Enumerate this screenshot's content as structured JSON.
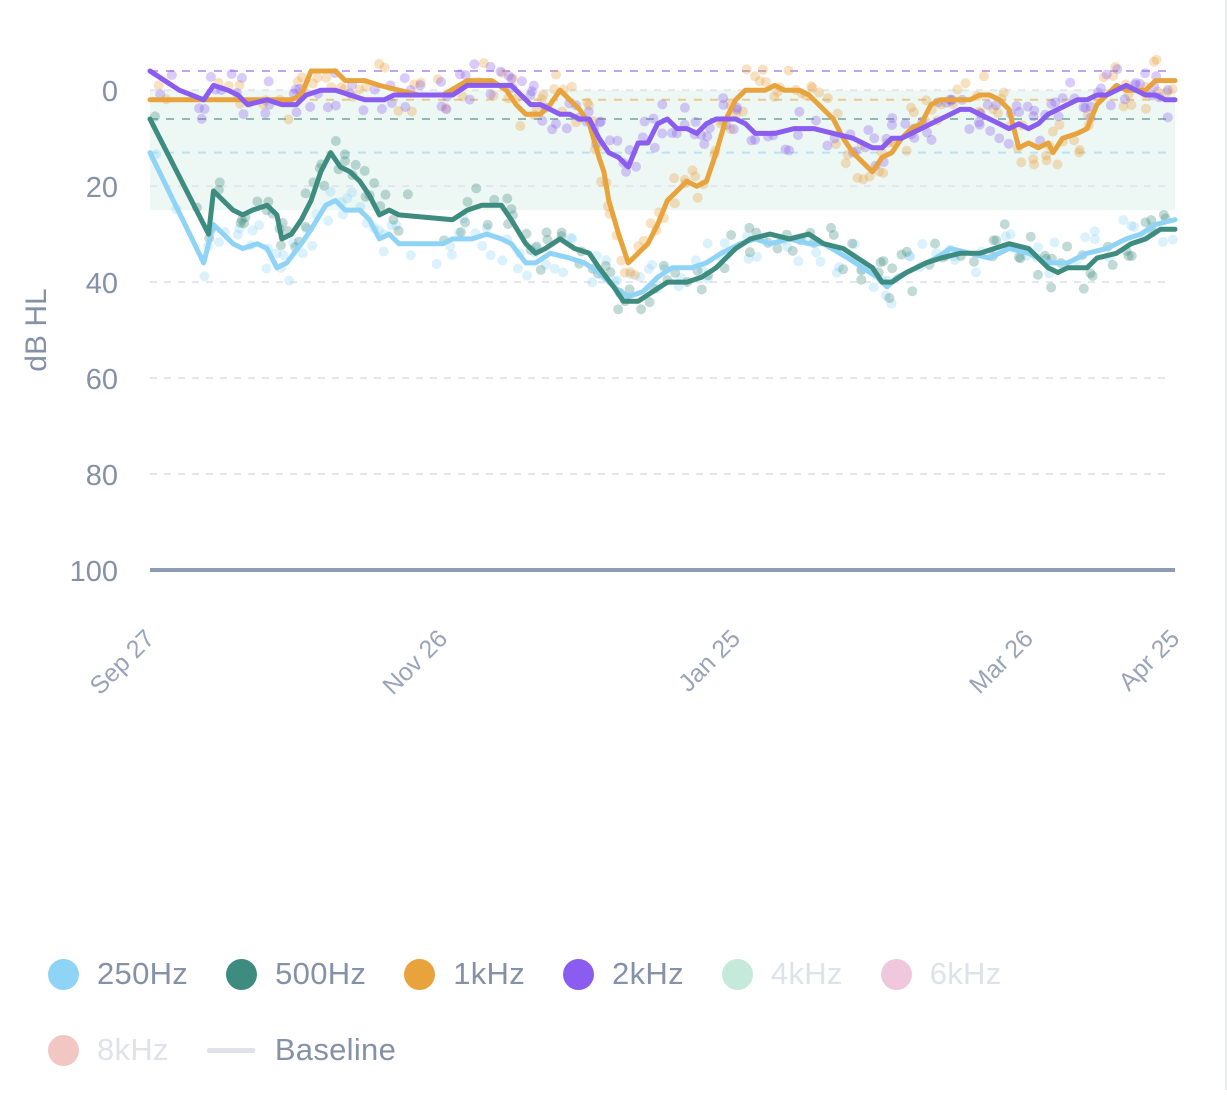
{
  "chart_data": {
    "type": "line",
    "ylabel": "dB HL",
    "y_inverted": true,
    "ylim": [
      100,
      -4
    ],
    "y_ticks": [
      0,
      20,
      40,
      60,
      80,
      100
    ],
    "x_ticks": [
      "Sep 27",
      "Nov 26",
      "Jan 25",
      "Mar 26",
      "Apr 25"
    ],
    "x_tick_days": [
      0,
      60,
      120,
      180,
      210
    ],
    "x_range_days": [
      0,
      210
    ],
    "grid": "dashed horizontal",
    "baseline_band": [
      0,
      25
    ],
    "baseline_value": 100,
    "colors": {
      "250Hz": "#8fd3f7",
      "500Hz": "#3d8c7f",
      "1kHz": "#e8a33d",
      "2kHz": "#8a5cf0",
      "4kHz": "#c5eadc",
      "6kHz": "#f0c8dd",
      "8kHz": "#f2c6c2",
      "baseline": "#8f9bb3",
      "band": "#eaf6f1",
      "grid": "#e3e6eb",
      "axis_text": "#8591a7"
    },
    "reference_lines": [
      {
        "series": "2kHz",
        "value": -4
      },
      {
        "series": "1kHz",
        "value": 2
      },
      {
        "series": "500Hz",
        "value": 6
      },
      {
        "series": "250Hz",
        "value": 13
      }
    ],
    "series": [
      {
        "name": "250Hz",
        "points": [
          [
            0,
            13
          ],
          [
            11,
            36
          ],
          [
            13,
            28
          ],
          [
            17,
            32
          ],
          [
            19,
            33
          ],
          [
            22,
            32
          ],
          [
            24,
            33
          ],
          [
            26,
            37
          ],
          [
            28,
            36
          ],
          [
            31,
            32
          ],
          [
            33,
            29
          ],
          [
            36,
            24
          ],
          [
            38,
            23
          ],
          [
            40,
            25
          ],
          [
            43,
            25
          ],
          [
            45,
            27
          ],
          [
            47,
            31
          ],
          [
            49,
            30
          ],
          [
            51,
            32
          ],
          [
            60,
            32
          ],
          [
            62,
            31
          ],
          [
            66,
            31
          ],
          [
            69,
            30
          ],
          [
            72,
            31
          ],
          [
            74,
            32
          ],
          [
            77,
            36
          ],
          [
            79,
            36
          ],
          [
            82,
            34
          ],
          [
            86,
            35
          ],
          [
            89,
            36
          ],
          [
            92,
            38
          ],
          [
            95,
            41
          ],
          [
            98,
            43
          ],
          [
            101,
            42
          ],
          [
            104,
            39
          ],
          [
            107,
            37
          ],
          [
            111,
            37
          ],
          [
            114,
            36
          ],
          [
            117,
            34
          ],
          [
            121,
            32
          ],
          [
            124,
            31
          ],
          [
            127,
            32
          ],
          [
            131,
            31
          ],
          [
            135,
            32
          ],
          [
            138,
            32
          ],
          [
            143,
            35
          ],
          [
            146,
            37
          ],
          [
            149,
            39
          ],
          [
            151,
            41
          ],
          [
            153,
            39
          ],
          [
            157,
            37
          ],
          [
            161,
            35
          ],
          [
            164,
            33
          ],
          [
            168,
            34
          ],
          [
            172,
            35
          ],
          [
            176,
            33
          ],
          [
            180,
            34
          ],
          [
            184,
            36
          ],
          [
            188,
            36
          ],
          [
            192,
            34
          ],
          [
            196,
            33
          ],
          [
            200,
            31
          ],
          [
            203,
            30
          ],
          [
            206,
            28
          ],
          [
            210,
            27
          ]
        ]
      },
      {
        "name": "500Hz",
        "points": [
          [
            0,
            6
          ],
          [
            12,
            30
          ],
          [
            13,
            21
          ],
          [
            17,
            25
          ],
          [
            19,
            26
          ],
          [
            21,
            25
          ],
          [
            24,
            24
          ],
          [
            26,
            26
          ],
          [
            27,
            31
          ],
          [
            29,
            30
          ],
          [
            31,
            27
          ],
          [
            33,
            23
          ],
          [
            35,
            17
          ],
          [
            37,
            13
          ],
          [
            39,
            16
          ],
          [
            41,
            17
          ],
          [
            43,
            19
          ],
          [
            45,
            22
          ],
          [
            47,
            26
          ],
          [
            49,
            25
          ],
          [
            51,
            26
          ],
          [
            62,
            27
          ],
          [
            65,
            25
          ],
          [
            68,
            24
          ],
          [
            72,
            24
          ],
          [
            74,
            27
          ],
          [
            77,
            32
          ],
          [
            79,
            34
          ],
          [
            81,
            33
          ],
          [
            84,
            31
          ],
          [
            87,
            33
          ],
          [
            90,
            34
          ],
          [
            92,
            37
          ],
          [
            95,
            41
          ],
          [
            97,
            44
          ],
          [
            100,
            44
          ],
          [
            103,
            42
          ],
          [
            106,
            40
          ],
          [
            110,
            40
          ],
          [
            113,
            39
          ],
          [
            116,
            37
          ],
          [
            120,
            33
          ],
          [
            123,
            31
          ],
          [
            127,
            30
          ],
          [
            131,
            31
          ],
          [
            135,
            30
          ],
          [
            138,
            32
          ],
          [
            142,
            33
          ],
          [
            145,
            35
          ],
          [
            148,
            37
          ],
          [
            150,
            40
          ],
          [
            152,
            40
          ],
          [
            155,
            38
          ],
          [
            159,
            36
          ],
          [
            162,
            35
          ],
          [
            166,
            34
          ],
          [
            170,
            34
          ],
          [
            173,
            33
          ],
          [
            176,
            32
          ],
          [
            180,
            33
          ],
          [
            182,
            35
          ],
          [
            184,
            37
          ],
          [
            186,
            38
          ],
          [
            188,
            37
          ],
          [
            192,
            37
          ],
          [
            194,
            35
          ],
          [
            198,
            34
          ],
          [
            201,
            32
          ],
          [
            204,
            31
          ],
          [
            207,
            29
          ],
          [
            210,
            29
          ]
        ]
      },
      {
        "name": "1kHz",
        "points": [
          [
            0,
            2
          ],
          [
            12,
            2
          ],
          [
            18,
            2
          ],
          [
            23,
            2
          ],
          [
            25,
            2
          ],
          [
            29,
            2
          ],
          [
            31,
            1
          ],
          [
            33,
            -4
          ],
          [
            35,
            -4
          ],
          [
            38,
            -4
          ],
          [
            40,
            -2
          ],
          [
            44,
            -2
          ],
          [
            47,
            -1
          ],
          [
            51,
            0
          ],
          [
            55,
            1
          ],
          [
            60,
            1
          ],
          [
            65,
            -2
          ],
          [
            70,
            -2
          ],
          [
            73,
            0
          ],
          [
            75,
            3
          ],
          [
            77,
            5
          ],
          [
            80,
            5
          ],
          [
            82,
            3
          ],
          [
            84,
            0
          ],
          [
            86,
            2
          ],
          [
            88,
            4
          ],
          [
            90,
            7
          ],
          [
            92,
            14
          ],
          [
            93,
            17
          ],
          [
            94,
            23
          ],
          [
            96,
            30
          ],
          [
            98,
            36
          ],
          [
            100,
            34
          ],
          [
            102,
            32
          ],
          [
            104,
            28
          ],
          [
            106,
            23
          ],
          [
            108,
            21
          ],
          [
            110,
            19
          ],
          [
            112,
            20
          ],
          [
            114,
            19
          ],
          [
            116,
            13
          ],
          [
            118,
            6
          ],
          [
            120,
            2
          ],
          [
            122,
            0
          ],
          [
            124,
            0
          ],
          [
            126,
            0
          ],
          [
            128,
            -1
          ],
          [
            130,
            0
          ],
          [
            133,
            0
          ],
          [
            135,
            1
          ],
          [
            137,
            3
          ],
          [
            140,
            6
          ],
          [
            142,
            10
          ],
          [
            144,
            13
          ],
          [
            146,
            15
          ],
          [
            148,
            17
          ],
          [
            150,
            14
          ],
          [
            152,
            13
          ],
          [
            154,
            10
          ],
          [
            156,
            8
          ],
          [
            158,
            7
          ],
          [
            160,
            3
          ],
          [
            162,
            2
          ],
          [
            165,
            2
          ],
          [
            168,
            2
          ],
          [
            170,
            1
          ],
          [
            172,
            1
          ],
          [
            174,
            2
          ],
          [
            176,
            4
          ],
          [
            178,
            12
          ],
          [
            180,
            11
          ],
          [
            182,
            12
          ],
          [
            184,
            11
          ],
          [
            185,
            13
          ],
          [
            187,
            10
          ],
          [
            190,
            9
          ],
          [
            192,
            8
          ],
          [
            194,
            3
          ],
          [
            196,
            1
          ],
          [
            198,
            -1
          ],
          [
            200,
            0
          ],
          [
            202,
            0
          ],
          [
            204,
            0
          ],
          [
            206,
            -2
          ],
          [
            208,
            -2
          ],
          [
            210,
            -2
          ]
        ]
      },
      {
        "name": "2kHz",
        "points": [
          [
            0,
            -4
          ],
          [
            6,
            0
          ],
          [
            11,
            2
          ],
          [
            13,
            -1
          ],
          [
            16,
            0
          ],
          [
            18,
            1
          ],
          [
            20,
            3
          ],
          [
            24,
            2
          ],
          [
            27,
            3
          ],
          [
            30,
            3
          ],
          [
            32,
            1
          ],
          [
            35,
            0
          ],
          [
            38,
            0
          ],
          [
            41,
            1
          ],
          [
            44,
            2
          ],
          [
            48,
            2
          ],
          [
            50,
            1
          ],
          [
            53,
            1
          ],
          [
            56,
            1
          ],
          [
            60,
            1
          ],
          [
            62,
            1
          ],
          [
            65,
            -1
          ],
          [
            68,
            -1
          ],
          [
            71,
            -1
          ],
          [
            74,
            -1
          ],
          [
            76,
            1
          ],
          [
            78,
            3
          ],
          [
            80,
            3
          ],
          [
            82,
            4
          ],
          [
            84,
            5
          ],
          [
            86,
            5
          ],
          [
            88,
            6
          ],
          [
            90,
            6
          ],
          [
            92,
            10
          ],
          [
            94,
            13
          ],
          [
            96,
            14
          ],
          [
            98,
            16
          ],
          [
            100,
            11
          ],
          [
            102,
            11
          ],
          [
            104,
            7
          ],
          [
            106,
            6
          ],
          [
            108,
            8
          ],
          [
            110,
            8
          ],
          [
            112,
            9
          ],
          [
            114,
            7
          ],
          [
            116,
            6
          ],
          [
            118,
            6
          ],
          [
            120,
            6
          ],
          [
            122,
            7
          ],
          [
            124,
            9
          ],
          [
            128,
            9
          ],
          [
            132,
            8
          ],
          [
            136,
            8
          ],
          [
            140,
            9
          ],
          [
            144,
            10
          ],
          [
            146,
            11
          ],
          [
            148,
            12
          ],
          [
            150,
            12
          ],
          [
            152,
            10
          ],
          [
            154,
            10
          ],
          [
            156,
            9
          ],
          [
            158,
            8
          ],
          [
            160,
            7
          ],
          [
            162,
            6
          ],
          [
            164,
            5
          ],
          [
            166,
            4
          ],
          [
            168,
            4
          ],
          [
            170,
            5
          ],
          [
            172,
            6
          ],
          [
            174,
            7
          ],
          [
            176,
            8
          ],
          [
            178,
            7
          ],
          [
            180,
            8
          ],
          [
            182,
            7
          ],
          [
            184,
            5
          ],
          [
            186,
            4
          ],
          [
            188,
            3
          ],
          [
            190,
            2
          ],
          [
            192,
            2
          ],
          [
            194,
            1
          ],
          [
            196,
            1
          ],
          [
            198,
            0
          ],
          [
            200,
            -1
          ],
          [
            202,
            0
          ],
          [
            204,
            1
          ],
          [
            206,
            1
          ],
          [
            208,
            2
          ],
          [
            210,
            2
          ]
        ]
      }
    ]
  },
  "legend": {
    "items": [
      {
        "label": "250Hz",
        "kind": "dot",
        "color": "#8fd3f7",
        "active": true
      },
      {
        "label": "500Hz",
        "kind": "dot",
        "color": "#3d8c7f",
        "active": true
      },
      {
        "label": "1kHz",
        "kind": "dot",
        "color": "#e8a33d",
        "active": true
      },
      {
        "label": "2kHz",
        "kind": "dot",
        "color": "#8a5cf0",
        "active": true
      },
      {
        "label": "4kHz",
        "kind": "dot",
        "color": "#c5eadc",
        "active": false
      },
      {
        "label": "6kHz",
        "kind": "dot",
        "color": "#f0c8dd",
        "active": false
      },
      {
        "label": "8kHz",
        "kind": "dot",
        "color": "#f2c6c2",
        "active": false
      },
      {
        "label": "Baseline",
        "kind": "line",
        "color": "#dfe2e8",
        "active": true
      }
    ]
  }
}
